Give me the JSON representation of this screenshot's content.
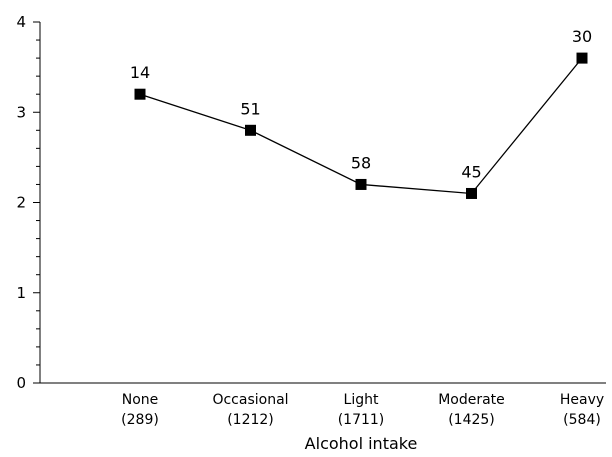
{
  "chart_data": {
    "type": "line",
    "title": "",
    "xlabel": "Alcohol intake",
    "ylabel": "",
    "ylim": [
      0,
      4
    ],
    "yticks": [
      "0",
      "1",
      "2",
      "3",
      "4"
    ],
    "minor_ticks_per_major": 5,
    "grid": false,
    "categories": [
      {
        "name": "None",
        "n": "(289)"
      },
      {
        "name": "Occasional",
        "n": "(1212)"
      },
      {
        "name": "Light",
        "n": "(1711)"
      },
      {
        "name": "Moderate",
        "n": "(1425)"
      },
      {
        "name": "Heavy",
        "n": "(584)"
      }
    ],
    "series": [
      {
        "values": [
          3.2,
          2.8,
          2.2,
          2.1,
          3.6
        ],
        "point_labels": [
          "14",
          "51",
          "58",
          "45",
          "30"
        ],
        "marker": "square",
        "color": "#000000"
      }
    ]
  }
}
